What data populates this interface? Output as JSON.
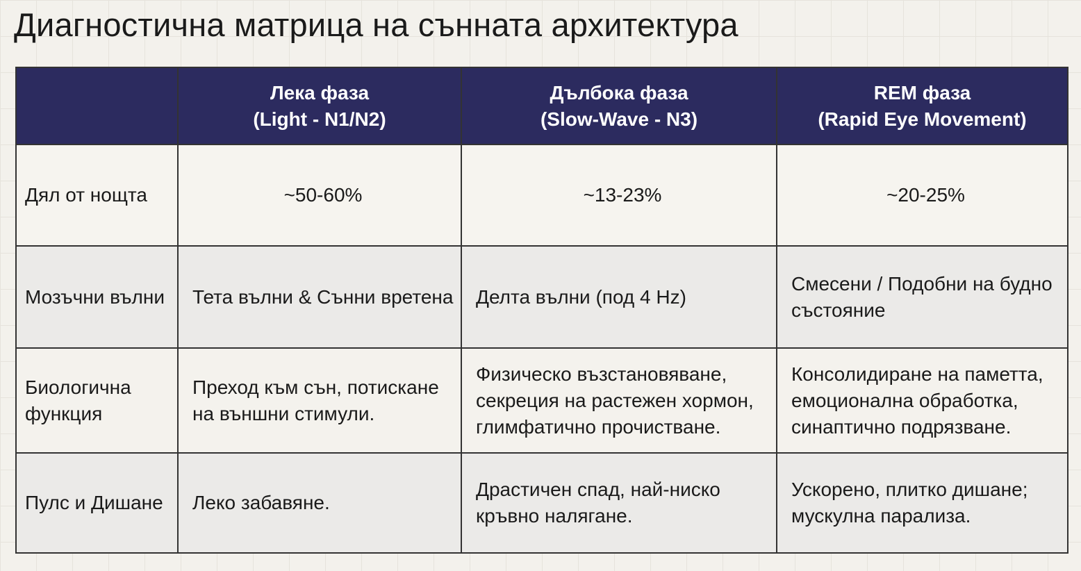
{
  "title": "Диагностична матрица на сънната архитектура",
  "table": {
    "header": [
      {
        "name": "Лека фаза",
        "subtitle": "(Light - N1/N2)"
      },
      {
        "name": "Дълбока фаза",
        "subtitle": "(Slow-Wave - N3)"
      },
      {
        "name": "REM фаза",
        "subtitle": "(Rapid Eye Movement)"
      }
    ],
    "rows": [
      {
        "label": "Дял от нощта",
        "cells": [
          "~50-60%",
          "~13-23%",
          "~20-25%"
        ]
      },
      {
        "label": "Мозъчни вълни",
        "cells": [
          "Тета вълни & Сънни вретена",
          "Делта вълни (под 4 Hz)",
          "Смесени / Подобни на будно състояние"
        ]
      },
      {
        "label": "Биологична функция",
        "cells": [
          "Преход към сън, потискане на външни стимули.",
          "Физическо възстановяване, секреция на растежен хормон, глимфатично прочистване.",
          "Консолидиране на паметта, емоционална обработка, синаптично подрязване."
        ]
      },
      {
        "label": "Пулс и Дишане",
        "cells": [
          "Леко забавяне.",
          "Драстичен спад, най-ниско кръвно налягане.",
          "Ускорено, плитко дишане; мускулна парализа."
        ]
      }
    ]
  }
}
